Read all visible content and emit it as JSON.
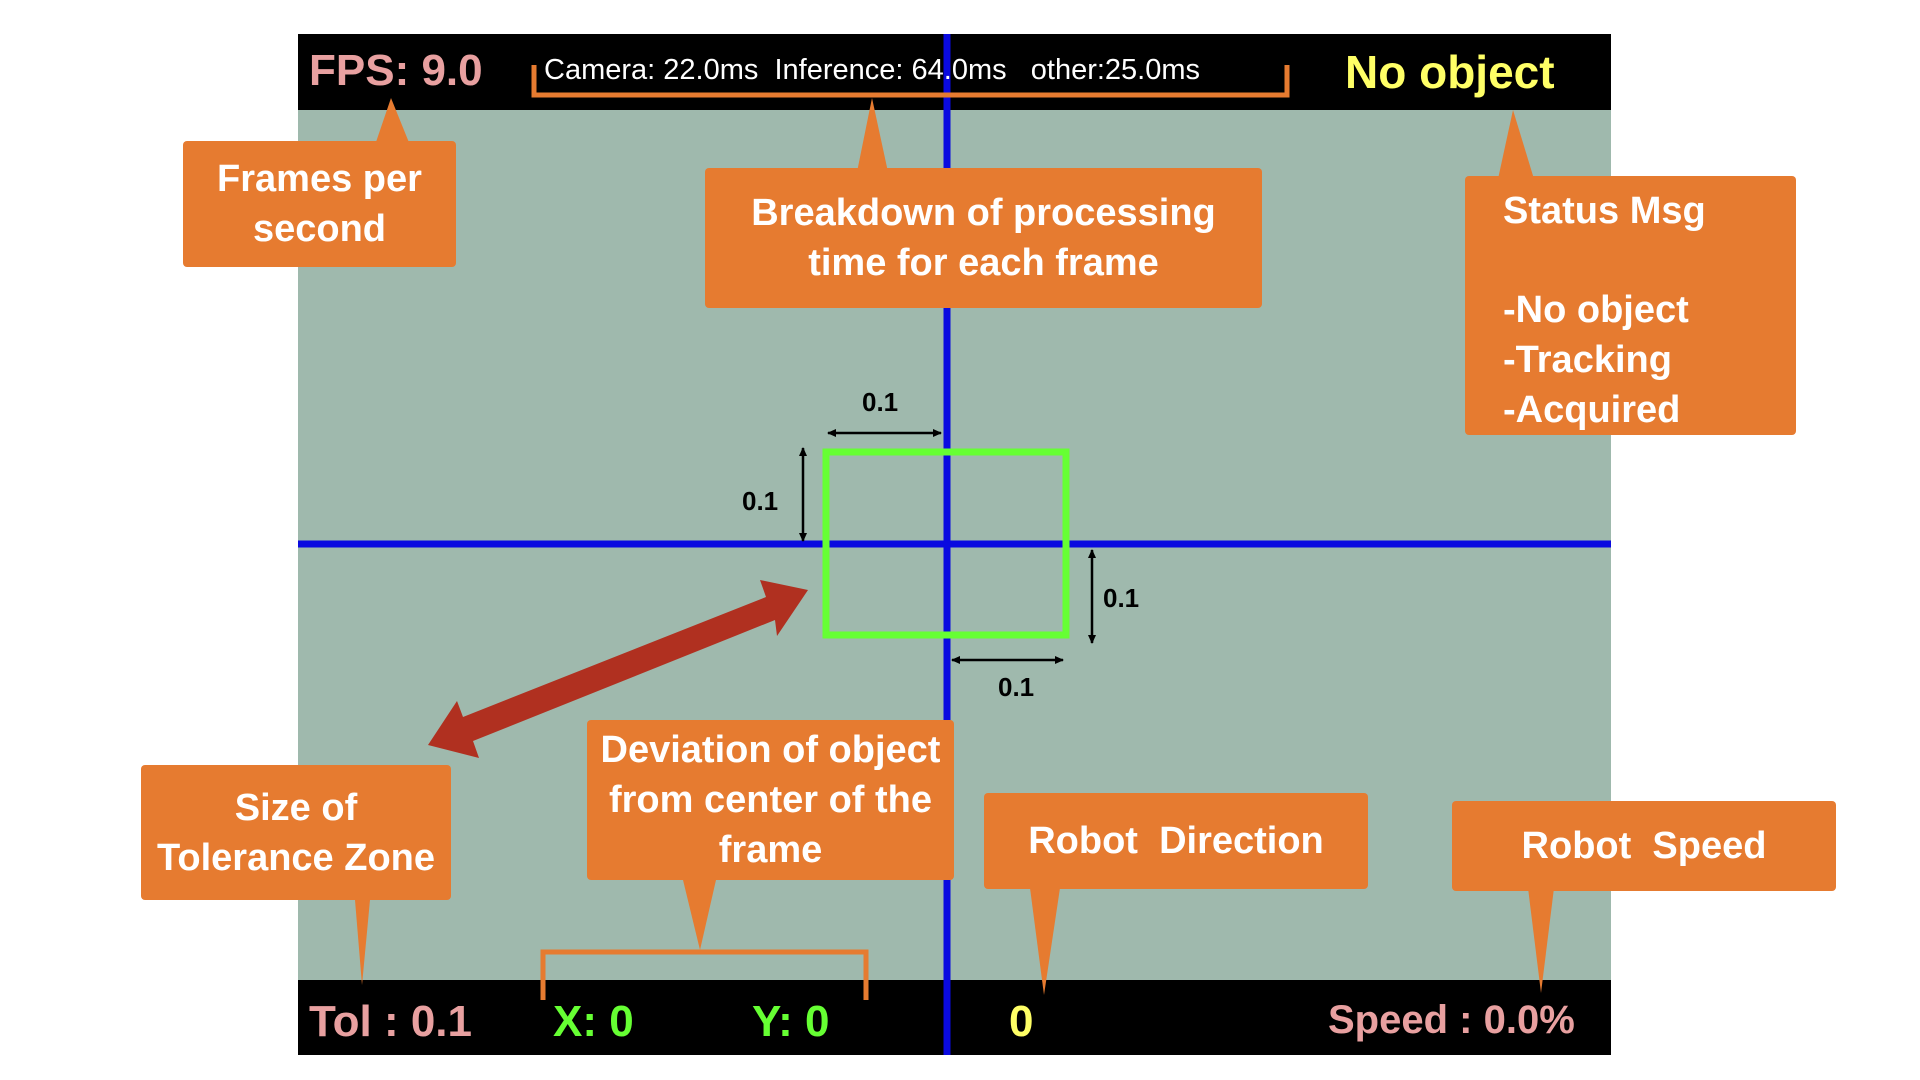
{
  "hud_top": {
    "fps": "FPS: 9.0",
    "timing": "Camera: 22.0ms  Inference: 64.0ms   other:25.0ms",
    "status": "No object"
  },
  "hud_bottom": {
    "tol": "Tol : 0.1",
    "x": "X: 0",
    "y": "Y: 0",
    "direction": "0",
    "speed": "Speed : 0.0%"
  },
  "callouts": {
    "fps": [
      "Frames per",
      "second"
    ],
    "breakdown": [
      "Breakdown of processing",
      "time for each frame"
    ],
    "status": {
      "title": "Status Msg",
      "items": [
        "-No object",
        "-Tracking",
        "-Acquired"
      ]
    },
    "tolerance": [
      "Size of",
      "Tolerance Zone"
    ],
    "deviation": [
      "Deviation of object",
      "from center of the",
      "frame"
    ],
    "direction": "Robot  Direction",
    "speed": "Robot  Speed"
  },
  "dimensions": {
    "left_top": "0.1",
    "top_left": "0.1",
    "right_bottom": "0.1",
    "bottom_right": "0.1"
  },
  "colors": {
    "frame_bg": "#9fb9ad",
    "bar_bg": "#000000",
    "crosshair": "#0a0ae0",
    "tolerance_box": "#66ff33",
    "callout": "#e67b30",
    "hud_pink": "#e8a0a0",
    "hud_yellow": "#ffff66",
    "hud_green": "#66ff33",
    "big_arrow": "#b03020"
  }
}
